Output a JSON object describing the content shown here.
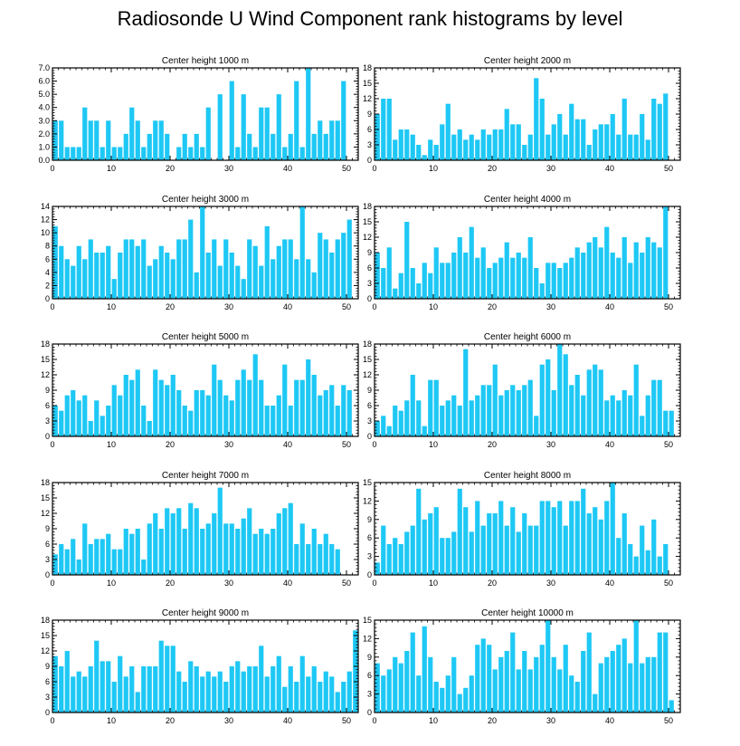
{
  "figure": {
    "title": "Radiosonde U Wind Component rank histograms by level",
    "bar_color": "#1ec8f5",
    "axis_color": "#000000"
  },
  "chart_data": [
    {
      "type": "bar",
      "title": "Center height 1000 m",
      "xlim": [
        0,
        52
      ],
      "ylim": [
        0,
        7
      ],
      "yticks": [
        0,
        1,
        2,
        3,
        4,
        5,
        6,
        7
      ],
      "ytick_labels": [
        "0.0",
        "1.0",
        "2.0",
        "3.0",
        "4.0",
        "5.0",
        "6.0",
        "7.0"
      ],
      "xticks": [
        0,
        10,
        20,
        30,
        40,
        50
      ],
      "values": [
        3,
        3,
        1,
        1,
        1,
        4,
        3,
        3,
        1,
        3,
        1,
        1,
        2,
        4,
        3,
        1,
        2,
        3,
        3,
        2,
        0,
        1,
        2,
        1,
        2,
        1,
        4,
        0,
        5,
        0,
        6,
        1,
        5,
        2,
        1,
        4,
        4,
        2,
        5,
        1,
        2,
        6,
        1,
        7,
        2,
        3,
        2,
        3,
        3,
        6
      ]
    },
    {
      "type": "bar",
      "title": "Center height 2000 m",
      "xlim": [
        0,
        52
      ],
      "ylim": [
        0,
        18
      ],
      "yticks": [
        0,
        3,
        6,
        9,
        12,
        15,
        18
      ],
      "ytick_labels": [
        "0",
        "3",
        "6",
        "9",
        "12",
        "15",
        "18"
      ],
      "xticks": [
        0,
        10,
        20,
        30,
        40,
        50
      ],
      "values": [
        9,
        12,
        12,
        4,
        6,
        6,
        5,
        3,
        1,
        4,
        3,
        7,
        11,
        5,
        6,
        4,
        5,
        4,
        6,
        5,
        6,
        6,
        10,
        7,
        7,
        3,
        5,
        16,
        12,
        5,
        7,
        9,
        5,
        11,
        8,
        8,
        3,
        6,
        7,
        7,
        9,
        5,
        12,
        5,
        5,
        9,
        4,
        12,
        11,
        13
      ]
    },
    {
      "type": "bar",
      "title": "Center height 3000 m",
      "xlim": [
        0,
        52
      ],
      "ylim": [
        0,
        14
      ],
      "yticks": [
        0,
        2,
        4,
        6,
        8,
        10,
        12,
        14
      ],
      "ytick_labels": [
        "0",
        "2",
        "4",
        "6",
        "8",
        "10",
        "12",
        "14"
      ],
      "xticks": [
        0,
        10,
        20,
        30,
        40,
        50
      ],
      "values": [
        11,
        8,
        6,
        5,
        8,
        6,
        9,
        7,
        7,
        8,
        3,
        7,
        9,
        9,
        8,
        9,
        5,
        6,
        8,
        7,
        6,
        9,
        9,
        12,
        4,
        14,
        7,
        9,
        5,
        9,
        7,
        5,
        3,
        9,
        8,
        5,
        11,
        6,
        8,
        9,
        9,
        6,
        14,
        6,
        4,
        10,
        9,
        7,
        9,
        10,
        12
      ]
    },
    {
      "type": "bar",
      "title": "Center height 4000 m",
      "xlim": [
        0,
        52
      ],
      "ylim": [
        0,
        18
      ],
      "yticks": [
        0,
        3,
        6,
        9,
        12,
        15,
        18
      ],
      "ytick_labels": [
        "0",
        "3",
        "6",
        "9",
        "12",
        "15",
        "18"
      ],
      "xticks": [
        0,
        10,
        20,
        30,
        40,
        50
      ],
      "values": [
        9,
        6,
        10,
        2,
        5,
        15,
        6,
        3,
        7,
        5,
        10,
        7,
        7,
        9,
        12,
        9,
        14,
        8,
        10,
        6,
        7,
        8,
        11,
        8,
        9,
        8,
        12,
        6,
        3,
        7,
        7,
        6,
        7,
        8,
        10,
        9,
        11,
        12,
        10,
        14,
        9,
        8,
        12,
        7,
        11,
        9,
        12,
        11,
        10,
        18
      ]
    },
    {
      "type": "bar",
      "title": "Center height 5000 m",
      "xlim": [
        0,
        52
      ],
      "ylim": [
        0,
        18
      ],
      "yticks": [
        0,
        3,
        6,
        9,
        12,
        15,
        18
      ],
      "ytick_labels": [
        "0",
        "3",
        "6",
        "9",
        "12",
        "15",
        "18"
      ],
      "xticks": [
        0,
        10,
        20,
        30,
        40,
        50
      ],
      "values": [
        6,
        5,
        8,
        9,
        7,
        8,
        3,
        7,
        4,
        6,
        10,
        8,
        12,
        11,
        13,
        6,
        3,
        13,
        11,
        10,
        12,
        9,
        6,
        5,
        9,
        9,
        8,
        14,
        11,
        8,
        7,
        11,
        13,
        11,
        16,
        11,
        6,
        6,
        8,
        14,
        6,
        11,
        11,
        15,
        12,
        8,
        9,
        10,
        6,
        10,
        9
      ]
    },
    {
      "type": "bar",
      "title": "Center height 6000 m",
      "xlim": [
        0,
        52
      ],
      "ylim": [
        0,
        18
      ],
      "yticks": [
        0,
        3,
        6,
        9,
        12,
        15,
        18
      ],
      "ytick_labels": [
        "0",
        "3",
        "6",
        "9",
        "12",
        "15",
        "18"
      ],
      "xticks": [
        0,
        10,
        20,
        30,
        40,
        50
      ],
      "values": [
        3,
        4,
        2,
        6,
        5,
        7,
        12,
        7,
        2,
        11,
        11,
        6,
        7,
        8,
        6,
        17,
        7,
        8,
        10,
        10,
        14,
        8,
        9,
        10,
        9,
        10,
        11,
        4,
        14,
        15,
        9,
        18,
        16,
        10,
        12,
        8,
        13,
        14,
        13,
        7,
        8,
        7,
        9,
        8,
        14,
        4,
        8,
        11,
        11,
        5,
        5
      ]
    },
    {
      "type": "bar",
      "title": "Center height 7000 m",
      "xlim": [
        0,
        52
      ],
      "ylim": [
        0,
        18
      ],
      "yticks": [
        0,
        3,
        6,
        9,
        12,
        15,
        18
      ],
      "ytick_labels": [
        "0",
        "3",
        "6",
        "9",
        "12",
        "15",
        "18"
      ],
      "xticks": [
        0,
        10,
        20,
        30,
        40,
        50
      ],
      "values": [
        4,
        6,
        5,
        7,
        3,
        10,
        6,
        7,
        7,
        8,
        5,
        5,
        9,
        8,
        9,
        3,
        10,
        12,
        9,
        13,
        12,
        13,
        9,
        14,
        13,
        9,
        10,
        12,
        17,
        10,
        10,
        9,
        11,
        13,
        8,
        9,
        8,
        9,
        12,
        13,
        14,
        6,
        10,
        6,
        9,
        6,
        8,
        6,
        5
      ]
    },
    {
      "type": "bar",
      "title": "Center height 8000 m",
      "xlim": [
        0,
        52
      ],
      "ylim": [
        0,
        15
      ],
      "yticks": [
        0,
        3,
        6,
        9,
        12,
        15
      ],
      "ytick_labels": [
        "0",
        "3",
        "6",
        "9",
        "12",
        "15"
      ],
      "xticks": [
        0,
        10,
        20,
        30,
        40,
        50
      ],
      "values": [
        2,
        8,
        5,
        6,
        5,
        7,
        8,
        14,
        9,
        10,
        11,
        6,
        6,
        7,
        14,
        11,
        7,
        12,
        8,
        10,
        10,
        12,
        8,
        11,
        7,
        10,
        8,
        8,
        12,
        12,
        11,
        12,
        8,
        12,
        12,
        14,
        10,
        11,
        9,
        12,
        15,
        6,
        10,
        5,
        3,
        8,
        4,
        9,
        3,
        5
      ]
    },
    {
      "type": "bar",
      "title": "Center height 9000 m",
      "xlim": [
        0,
        52
      ],
      "ylim": [
        0,
        18
      ],
      "yticks": [
        0,
        3,
        6,
        9,
        12,
        15,
        18
      ],
      "ytick_labels": [
        "0",
        "3",
        "6",
        "9",
        "12",
        "15",
        "18"
      ],
      "xticks": [
        0,
        10,
        20,
        30,
        40,
        50
      ],
      "values": [
        11,
        9,
        12,
        7,
        8,
        7,
        9,
        14,
        10,
        10,
        6,
        11,
        7,
        9,
        4,
        9,
        9,
        9,
        14,
        13,
        13,
        8,
        6,
        10,
        9,
        7,
        8,
        7,
        8,
        6,
        9,
        10,
        8,
        9,
        9,
        13,
        7,
        9,
        11,
        5,
        9,
        6,
        11,
        7,
        9,
        6,
        8,
        7,
        4,
        6,
        8,
        16
      ]
    },
    {
      "type": "bar",
      "title": "Center height 10000 m",
      "xlim": [
        0,
        52
      ],
      "ylim": [
        0,
        15
      ],
      "yticks": [
        0,
        3,
        6,
        9,
        12,
        15
      ],
      "ytick_labels": [
        "0",
        "3",
        "6",
        "9",
        "12",
        "15"
      ],
      "xticks": [
        0,
        10,
        20,
        30,
        40,
        50
      ],
      "values": [
        8,
        6,
        7,
        9,
        8,
        10,
        13,
        6,
        14,
        9,
        5,
        4,
        6,
        9,
        3,
        4,
        6,
        11,
        12,
        11,
        7,
        9,
        10,
        13,
        7,
        10,
        7,
        9,
        11,
        15,
        9,
        7,
        11,
        6,
        5,
        10,
        13,
        3,
        8,
        9,
        10,
        11,
        12,
        8,
        15,
        8,
        9,
        9,
        13,
        13,
        2
      ]
    }
  ]
}
